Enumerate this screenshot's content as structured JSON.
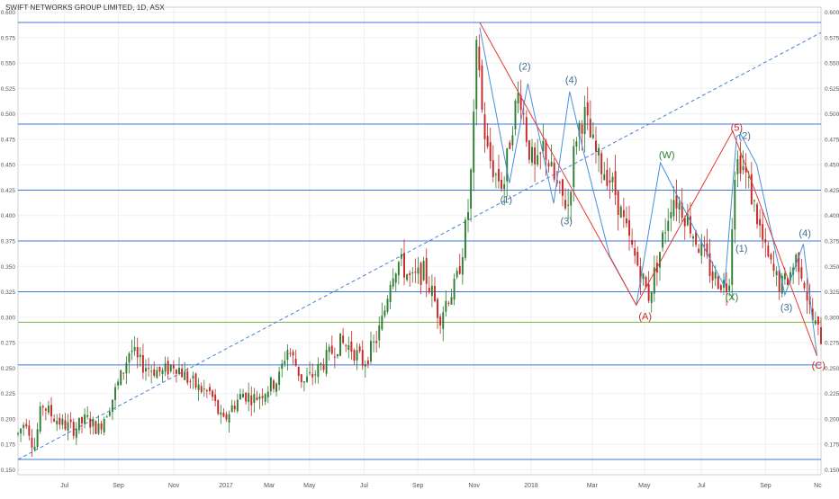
{
  "title": "SWIFT NETWORKS GROUP LIMITED, 1D, ASX",
  "colors": {
    "up": "#2e7d32",
    "down": "#c62828",
    "hline": "#3c78d8",
    "hline_green": "#7cb342",
    "wave_red": "#e53935",
    "wave_blue": "#4a90d9",
    "trend": "#4a7fd6",
    "label_blue": "#3d6e8f",
    "label_green": "#2e7d32",
    "label_red": "#c62828",
    "grid": "#f0f0f0",
    "axis_text": "#555555"
  },
  "chart_data": {
    "type": "candlestick",
    "symbol": "SWIFT NETWORKS GROUP LIMITED",
    "interval": "1D",
    "exchange": "ASX",
    "ylim": [
      0.145,
      0.605
    ],
    "y_ticks": [
      "0.600",
      "0.575",
      "0.550",
      "0.525",
      "0.500",
      "0.475",
      "0.450",
      "0.425",
      "0.400",
      "0.375",
      "0.350",
      "0.325",
      "0.300",
      "0.275",
      "0.250",
      "0.225",
      "0.200",
      "0.175",
      "0.150"
    ],
    "x_labels": [
      {
        "label": "Jul",
        "pos": 0.058
      },
      {
        "label": "Sep",
        "pos": 0.125
      },
      {
        "label": "Nov",
        "pos": 0.194
      },
      {
        "label": "2017",
        "pos": 0.259
      },
      {
        "label": "Mar",
        "pos": 0.313
      },
      {
        "label": "May",
        "pos": 0.363
      },
      {
        "label": "Jul",
        "pos": 0.431
      },
      {
        "label": "Sep",
        "pos": 0.498
      },
      {
        "label": "Nov",
        "pos": 0.568
      },
      {
        "label": "2018",
        "pos": 0.639
      },
      {
        "label": "Mar",
        "pos": 0.715
      },
      {
        "label": "May",
        "pos": 0.78
      },
      {
        "label": "Jul",
        "pos": 0.851
      },
      {
        "label": "Sep",
        "pos": 0.931
      },
      {
        "label": "Nc",
        "pos": 0.996
      }
    ],
    "horizontal_levels": [
      0.59,
      0.49,
      0.425,
      0.375,
      0.325,
      0.253,
      0.16
    ],
    "green_levels": [
      0.295
    ],
    "price_path": [
      [
        0.0,
        0.185
      ],
      [
        0.01,
        0.2
      ],
      [
        0.02,
        0.17
      ],
      [
        0.03,
        0.215
      ],
      [
        0.04,
        0.205
      ],
      [
        0.055,
        0.195
      ],
      [
        0.07,
        0.19
      ],
      [
        0.085,
        0.2
      ],
      [
        0.1,
        0.19
      ],
      [
        0.115,
        0.215
      ],
      [
        0.13,
        0.245
      ],
      [
        0.14,
        0.27
      ],
      [
        0.15,
        0.255
      ],
      [
        0.165,
        0.25
      ],
      [
        0.18,
        0.245
      ],
      [
        0.195,
        0.255
      ],
      [
        0.21,
        0.24
      ],
      [
        0.225,
        0.23
      ],
      [
        0.24,
        0.225
      ],
      [
        0.255,
        0.195
      ],
      [
        0.265,
        0.21
      ],
      [
        0.28,
        0.225
      ],
      [
        0.295,
        0.22
      ],
      [
        0.31,
        0.23
      ],
      [
        0.325,
        0.24
      ],
      [
        0.335,
        0.27
      ],
      [
        0.345,
        0.255
      ],
      [
        0.355,
        0.235
      ],
      [
        0.37,
        0.245
      ],
      [
        0.385,
        0.26
      ],
      [
        0.4,
        0.275
      ],
      [
        0.415,
        0.27
      ],
      [
        0.43,
        0.255
      ],
      [
        0.445,
        0.275
      ],
      [
        0.455,
        0.3
      ],
      [
        0.465,
        0.345
      ],
      [
        0.475,
        0.355
      ],
      [
        0.49,
        0.335
      ],
      [
        0.505,
        0.345
      ],
      [
        0.515,
        0.325
      ],
      [
        0.525,
        0.3
      ],
      [
        0.535,
        0.32
      ],
      [
        0.545,
        0.33
      ],
      [
        0.552,
        0.36
      ],
      [
        0.56,
        0.4
      ],
      [
        0.566,
        0.46
      ],
      [
        0.572,
        0.58
      ],
      [
        0.578,
        0.5
      ],
      [
        0.585,
        0.46
      ],
      [
        0.595,
        0.44
      ],
      [
        0.605,
        0.43
      ],
      [
        0.615,
        0.49
      ],
      [
        0.625,
        0.525
      ],
      [
        0.635,
        0.47
      ],
      [
        0.645,
        0.44
      ],
      [
        0.655,
        0.47
      ],
      [
        0.665,
        0.44
      ],
      [
        0.675,
        0.42
      ],
      [
        0.685,
        0.41
      ],
      [
        0.695,
        0.48
      ],
      [
        0.705,
        0.5
      ],
      [
        0.715,
        0.47
      ],
      [
        0.725,
        0.45
      ],
      [
        0.735,
        0.44
      ],
      [
        0.745,
        0.42
      ],
      [
        0.755,
        0.39
      ],
      [
        0.765,
        0.365
      ],
      [
        0.775,
        0.345
      ],
      [
        0.785,
        0.32
      ],
      [
        0.795,
        0.35
      ],
      [
        0.805,
        0.385
      ],
      [
        0.815,
        0.42
      ],
      [
        0.825,
        0.41
      ],
      [
        0.835,
        0.395
      ],
      [
        0.845,
        0.375
      ],
      [
        0.855,
        0.36
      ],
      [
        0.865,
        0.34
      ],
      [
        0.875,
        0.335
      ],
      [
        0.885,
        0.33
      ],
      [
        0.893,
        0.45
      ],
      [
        0.9,
        0.455
      ],
      [
        0.91,
        0.43
      ],
      [
        0.92,
        0.4
      ],
      [
        0.93,
        0.365
      ],
      [
        0.94,
        0.345
      ],
      [
        0.95,
        0.33
      ],
      [
        0.96,
        0.34
      ],
      [
        0.97,
        0.36
      ],
      [
        0.978,
        0.34
      ],
      [
        0.988,
        0.3
      ],
      [
        1.0,
        0.28
      ]
    ],
    "trend_line": [
      [
        0.0,
        0.16
      ],
      [
        1.0,
        0.58
      ]
    ],
    "wave_red": [
      [
        0.575,
        0.59
      ],
      [
        0.77,
        0.312
      ],
      [
        0.89,
        0.483
      ],
      [
        0.995,
        0.262
      ]
    ],
    "wave_blue": [
      [
        0.575,
        0.585
      ],
      [
        0.612,
        0.432
      ],
      [
        0.635,
        0.53
      ],
      [
        0.667,
        0.412
      ],
      [
        0.687,
        0.522
      ],
      [
        0.705,
        0.46
      ],
      [
        0.737,
        0.36
      ],
      [
        0.77,
        0.312
      ],
      [
        0.8,
        0.452
      ],
      [
        0.835,
        0.398
      ],
      [
        0.88,
        0.33
      ],
      [
        0.895,
        0.478
      ],
      [
        0.9,
        0.48
      ],
      [
        0.92,
        0.45
      ],
      [
        0.955,
        0.322
      ],
      [
        0.978,
        0.372
      ],
      [
        0.995,
        0.262
      ]
    ],
    "wave_labels": [
      {
        "text": "(2)",
        "x": 0.631,
        "y": 0.546,
        "color": "blue"
      },
      {
        "text": "(4)",
        "x": 0.689,
        "y": 0.533,
        "color": "blue"
      },
      {
        "text": "(1)",
        "x": 0.608,
        "y": 0.415,
        "color": "blue"
      },
      {
        "text": "(3)",
        "x": 0.683,
        "y": 0.394,
        "color": "blue"
      },
      {
        "text": "(W)",
        "x": 0.808,
        "y": 0.459,
        "color": "green"
      },
      {
        "text": "(5)",
        "x": 0.895,
        "y": 0.486,
        "color": "red"
      },
      {
        "text": "(2)",
        "x": 0.905,
        "y": 0.478,
        "color": "blue"
      },
      {
        "text": "(1)",
        "x": 0.901,
        "y": 0.367,
        "color": "blue"
      },
      {
        "text": "(4)",
        "x": 0.98,
        "y": 0.382,
        "color": "blue"
      },
      {
        "text": "(X)",
        "x": 0.889,
        "y": 0.319,
        "color": "green"
      },
      {
        "text": "(3)",
        "x": 0.957,
        "y": 0.309,
        "color": "blue"
      },
      {
        "text": "(A)",
        "x": 0.781,
        "y": 0.3,
        "color": "red"
      },
      {
        "text": "(C)",
        "x": 0.997,
        "y": 0.252,
        "color": "red"
      }
    ],
    "grid": true,
    "legend": "none"
  }
}
